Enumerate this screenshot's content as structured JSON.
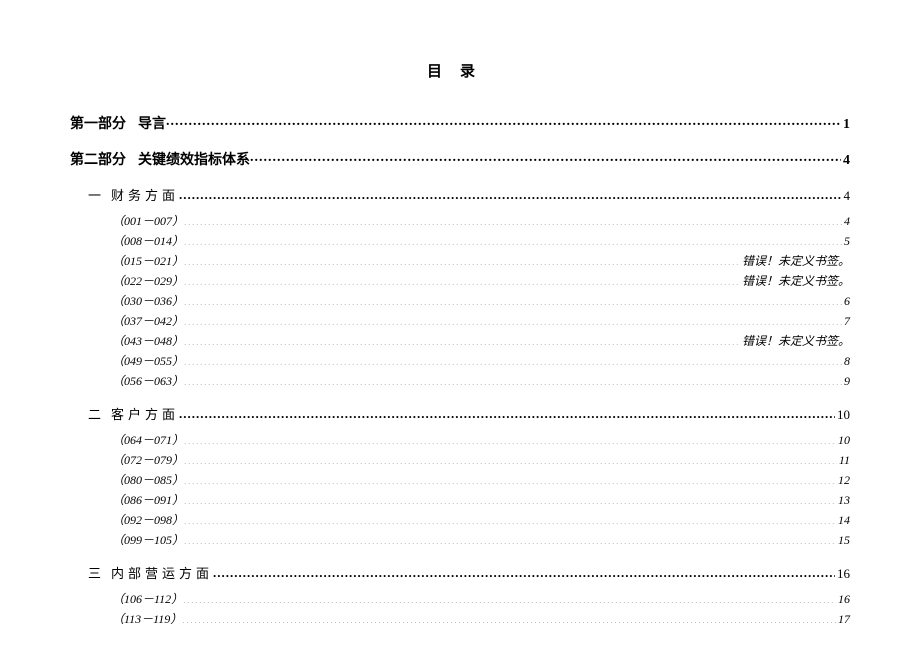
{
  "title": "目录",
  "entries": [
    {
      "level": 1,
      "prefix": "第一部分",
      "label": "导言",
      "page": "1"
    },
    {
      "level": 1,
      "prefix": "第二部分",
      "label": "关键绩效指标体系",
      "page": "4"
    },
    {
      "level": 2,
      "prefix": "一",
      "label": "财务方面",
      "page": "4"
    },
    {
      "level": 3,
      "label": "（001－007）",
      "page": "4"
    },
    {
      "level": 3,
      "label": "（008－014）",
      "page": "5"
    },
    {
      "level": 3,
      "label": "（015－021）",
      "page": "错误！未定义书签。"
    },
    {
      "level": 3,
      "label": "（022－029）",
      "page": "错误！未定义书签。"
    },
    {
      "level": 3,
      "label": "（030－036）",
      "page": "6"
    },
    {
      "level": 3,
      "label": "（037－042）",
      "page": "7"
    },
    {
      "level": 3,
      "label": "（043－048）",
      "page": "错误！未定义书签。"
    },
    {
      "level": 3,
      "label": "（049－055）",
      "page": "8"
    },
    {
      "level": 3,
      "label": "（056－063）",
      "page": "9"
    },
    {
      "level": 2,
      "prefix": "二",
      "label": "客户方面",
      "page": "10"
    },
    {
      "level": 3,
      "label": "（064－071）",
      "page": "10"
    },
    {
      "level": 3,
      "label": "（072－079）",
      "page": "11"
    },
    {
      "level": 3,
      "label": "（080－085）",
      "page": "12"
    },
    {
      "level": 3,
      "label": "（086－091）",
      "page": "13"
    },
    {
      "level": 3,
      "label": "（092－098）",
      "page": "14"
    },
    {
      "level": 3,
      "label": "（099－105）",
      "page": "15"
    },
    {
      "level": 2,
      "prefix": "三",
      "label": "内部营运方面",
      "page": "16"
    },
    {
      "level": 3,
      "label": "（106－112）",
      "page": "16"
    },
    {
      "level": 3,
      "label": "（113－119）",
      "page": "17"
    }
  ]
}
